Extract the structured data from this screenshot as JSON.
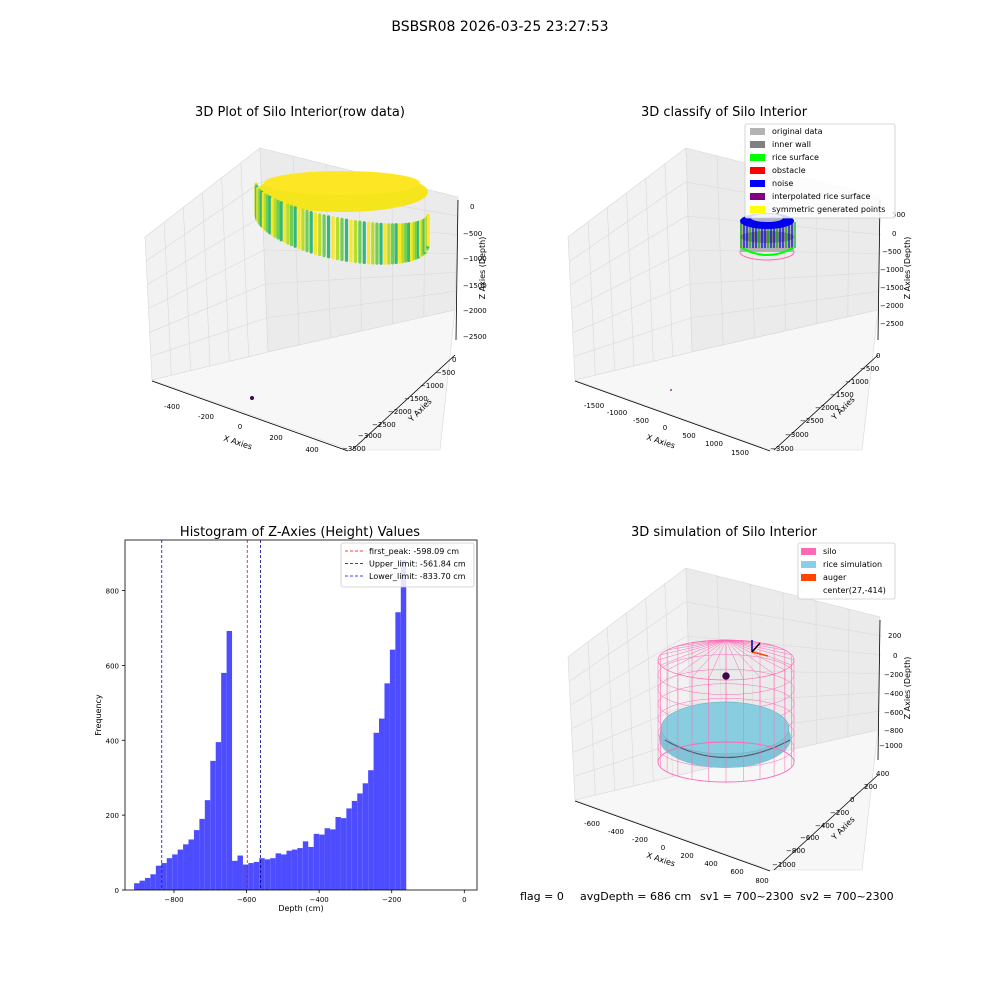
{
  "suptitle": "BSBSR08 2026-03-25 23:27:53",
  "footer": {
    "flag": "flag = 0",
    "avg": "avgDepth = 686 cm",
    "sv1": "sv1 = 700~2300",
    "sv2": "sv2 = 700~2300"
  },
  "chart_data": [
    {
      "type": "scatter",
      "title": "3D Plot of Silo Interior(row data)",
      "xlabel": "X Axies",
      "ylabel": "Y Axies",
      "zlabel": "Z Axies (Depth)",
      "x_ticks": [
        "-400",
        "-200",
        "0",
        "200",
        "400"
      ],
      "y_ticks": [
        "0",
        "−500",
        "−1000",
        "−1500",
        "−2000",
        "−2500",
        "−3000",
        "−3500"
      ],
      "z_ticks": [
        "0",
        "−500",
        "−1000",
        "−1500",
        "−2000",
        "−2500"
      ],
      "colors": [
        "#fde725",
        "#b5de2b",
        "#6ece58",
        "#35b779"
      ]
    },
    {
      "type": "scatter",
      "title": "3D classify of Silo Interior",
      "xlabel": "X Axies",
      "ylabel": "Y Axies",
      "zlabel": "Z Axies (Depth)",
      "x_ticks": [
        "-1500",
        "-1000",
        "-500",
        "0",
        "500",
        "1000",
        "1500"
      ],
      "y_ticks": [
        "0",
        "−500",
        "−1000",
        "−1500",
        "−2000",
        "−2500",
        "−3000",
        "−3500"
      ],
      "z_ticks": [
        "500",
        "0",
        "−500",
        "−1000",
        "−1500",
        "−2000",
        "−2500"
      ],
      "legend": [
        {
          "label": "original data",
          "color": "#b3b3b3"
        },
        {
          "label": "inner wall",
          "color": "#808080"
        },
        {
          "label": "rice surface",
          "color": "#00ff00"
        },
        {
          "label": "obstacle",
          "color": "#ff0000"
        },
        {
          "label": "noise",
          "color": "#0000ff"
        },
        {
          "label": "interpolated rice surface",
          "color": "#800080"
        },
        {
          "label": "symmetric generated points",
          "color": "#ffff00"
        }
      ]
    },
    {
      "type": "bar",
      "title": "Histogram of Z-Axies (Height) Values",
      "xlabel": "Depth (cm)",
      "ylabel": "Frequency",
      "xlim": [
        -935,
        35
      ],
      "ylim": [
        0,
        935
      ],
      "x_ticks": [
        -800,
        -600,
        -400,
        -200,
        0
      ],
      "x_tick_labels": [
        "−800",
        "−600",
        "−400",
        "−200",
        "0"
      ],
      "y_ticks": [
        0,
        200,
        400,
        600,
        800
      ],
      "bin_start": -910,
      "bin_width": 15,
      "values": [
        18,
        25,
        32,
        42,
        65,
        72,
        85,
        95,
        108,
        122,
        135,
        160,
        190,
        240,
        345,
        395,
        580,
        692,
        78,
        92,
        68,
        72,
        75,
        85,
        82,
        85,
        98,
        95,
        105,
        108,
        112,
        130,
        115,
        150,
        148,
        165,
        162,
        195,
        192,
        218,
        238,
        258,
        285,
        320,
        420,
        458,
        552,
        642,
        742,
        882
      ],
      "vlines": [
        {
          "label": "first_peak: -598.09 cm",
          "x": -598.09,
          "color": "#ff0000"
        },
        {
          "label": "Upper_limit: -561.84 cm",
          "x": -561.84,
          "color": "#00008b"
        },
        {
          "label": "Lower_limit: -833.70 cm",
          "x": -833.7,
          "color": "#0000ff"
        }
      ],
      "bar_color": "#4d4dff"
    },
    {
      "type": "scatter",
      "title": "3D simulation of Silo Interior",
      "xlabel": "X Axies",
      "ylabel": "Y Axies",
      "zlabel": "Z Axies (Depth)",
      "x_ticks": [
        "-600",
        "-400",
        "-200",
        "0",
        "200",
        "400",
        "600",
        "800"
      ],
      "y_ticks": [
        "400",
        "200",
        "0",
        "−200",
        "−400",
        "−600",
        "−800",
        "−1000"
      ],
      "z_ticks": [
        "200",
        "0",
        "−200",
        "−400",
        "−600",
        "−800",
        "−1000"
      ],
      "legend": [
        {
          "label": "silo",
          "color": "#ff69b4"
        },
        {
          "label": "rice simulation",
          "color": "#87ceeb"
        },
        {
          "label": "auger",
          "color": "#ff4500"
        },
        {
          "label": "center(27,-414)",
          "color": ""
        }
      ]
    }
  ]
}
